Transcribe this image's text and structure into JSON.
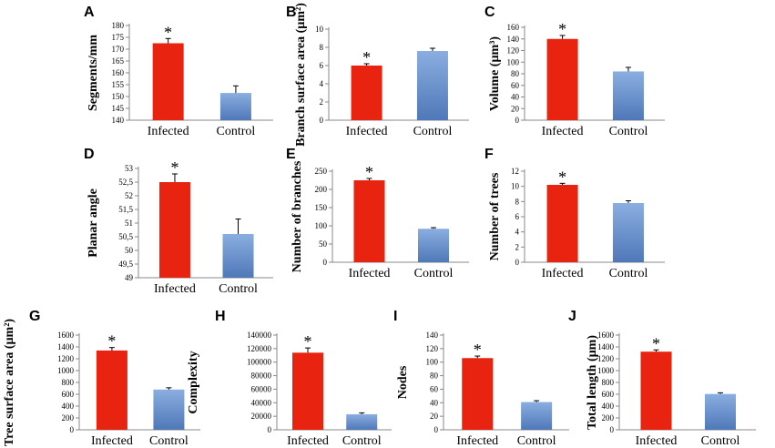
{
  "colors": {
    "infected": "#e8230f",
    "control_top": "#8aaee0",
    "control_bottom": "#4f78b8",
    "axis": "#888888"
  },
  "chart_data": [
    {
      "panel": "A",
      "type": "bar",
      "categories": [
        "Infected",
        "Control"
      ],
      "values": [
        172.5,
        151.5
      ],
      "errors": [
        2,
        3
      ],
      "significance": [
        "*",
        ""
      ],
      "ylabel": "Segments/mm",
      "ylim": [
        140,
        180
      ],
      "ticks": [
        "140",
        "145",
        "150",
        "155",
        "160",
        "165",
        "170",
        "175",
        "180"
      ]
    },
    {
      "panel": "B",
      "type": "bar",
      "categories": [
        "Infected",
        "Control"
      ],
      "values": [
        6.0,
        7.6
      ],
      "errors": [
        0.2,
        0.3
      ],
      "significance": [
        "*",
        ""
      ],
      "ylabel": "Branch surface area (µm²)",
      "ylim": [
        0,
        10
      ],
      "ticks": [
        "0",
        "2",
        "4",
        "6",
        "8",
        "10"
      ]
    },
    {
      "panel": "C",
      "type": "bar",
      "categories": [
        "Infected",
        "Control"
      ],
      "values": [
        140,
        84
      ],
      "errors": [
        6,
        7
      ],
      "significance": [
        "*",
        ""
      ],
      "ylabel": "Volume (µm³)",
      "ylim": [
        0,
        160
      ],
      "ticks": [
        "0",
        "20",
        "40",
        "60",
        "80",
        "100",
        "120",
        "140",
        "160"
      ]
    },
    {
      "panel": "D",
      "type": "bar",
      "categories": [
        "Infected",
        "Control"
      ],
      "values": [
        52.5,
        50.6
      ],
      "errors": [
        0.3,
        0.55
      ],
      "significance": [
        "*",
        ""
      ],
      "ylabel": "Planar angle",
      "ylim": [
        49,
        53
      ],
      "ticks": [
        "49",
        "49,5",
        "50",
        "50,5",
        "51",
        "51,5",
        "52",
        "52,5",
        "53"
      ]
    },
    {
      "panel": "E",
      "type": "bar",
      "categories": [
        "Infected",
        "Control"
      ],
      "values": [
        225,
        92
      ],
      "errors": [
        5,
        3
      ],
      "significance": [
        "*",
        ""
      ],
      "ylabel": "Number of branches",
      "ylim": [
        0,
        250
      ],
      "ticks": [
        "0",
        "50",
        "100",
        "150",
        "200",
        "250"
      ]
    },
    {
      "panel": "F",
      "type": "bar",
      "categories": [
        "Infected",
        "Control"
      ],
      "values": [
        10.2,
        7.8
      ],
      "errors": [
        0.2,
        0.3
      ],
      "significance": [
        "*",
        ""
      ],
      "ylabel": "Number of trees",
      "ylim": [
        0,
        12
      ],
      "ticks": [
        "0",
        "2",
        "4",
        "6",
        "8",
        "10",
        "12"
      ]
    },
    {
      "panel": "G",
      "type": "bar",
      "categories": [
        "Infected",
        "Control"
      ],
      "values": [
        1340,
        680
      ],
      "errors": [
        50,
        30
      ],
      "significance": [
        "*",
        ""
      ],
      "ylabel": "Tree surface area (µm²)",
      "ylim": [
        0,
        1600
      ],
      "ticks": [
        "0",
        "200",
        "400",
        "600",
        "800",
        "1000",
        "1200",
        "1400",
        "1600"
      ]
    },
    {
      "panel": "H",
      "type": "bar",
      "categories": [
        "Infected",
        "Control"
      ],
      "values": [
        114000,
        23000
      ],
      "errors": [
        7000,
        2000
      ],
      "significance": [
        "*",
        ""
      ],
      "ylabel": "Complexity",
      "ylim": [
        0,
        140000
      ],
      "ticks": [
        "0",
        "20000",
        "40000",
        "60000",
        "80000",
        "100000",
        "120000",
        "140000"
      ]
    },
    {
      "panel": "I",
      "type": "bar",
      "categories": [
        "Infected",
        "Control"
      ],
      "values": [
        106,
        41
      ],
      "errors": [
        3,
        2
      ],
      "significance": [
        "*",
        ""
      ],
      "ylabel": "Nodes",
      "ylim": [
        0,
        140
      ],
      "ticks": [
        "0",
        "20",
        "40",
        "60",
        "80",
        "100",
        "120",
        "140"
      ]
    },
    {
      "panel": "J",
      "type": "bar",
      "categories": [
        "Infected",
        "Control"
      ],
      "values": [
        1320,
        605
      ],
      "errors": [
        30,
        20
      ],
      "significance": [
        "*",
        ""
      ],
      "ylabel": "Total length (µm)",
      "ylim": [
        0,
        1600
      ],
      "ticks": [
        "0",
        "200",
        "400",
        "600",
        "800",
        "1000",
        "1200",
        "1400",
        "1600"
      ]
    }
  ]
}
